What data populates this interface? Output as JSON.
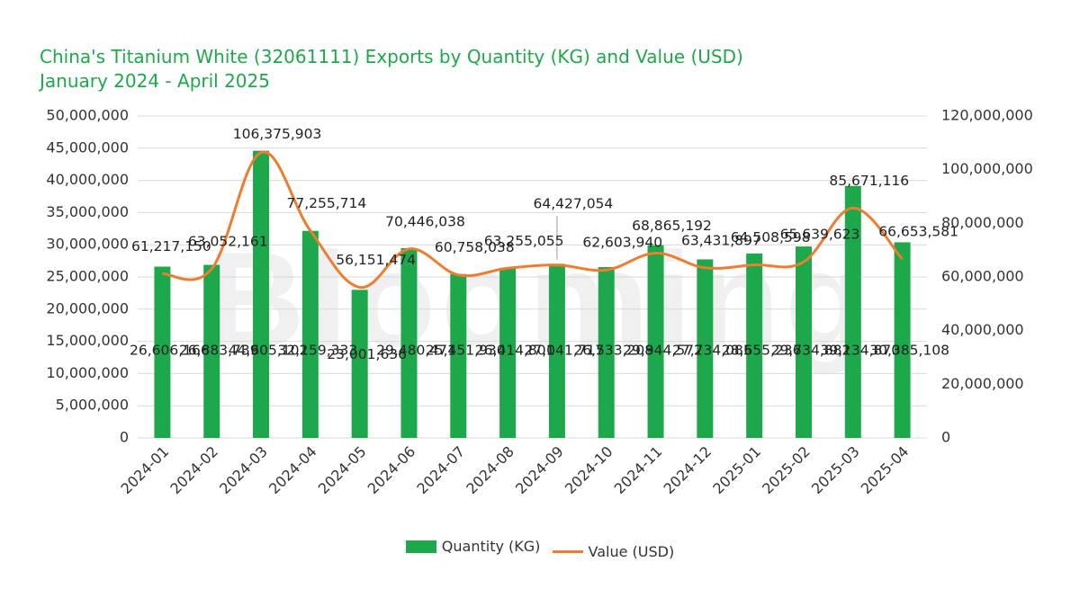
{
  "title": {
    "line1": "China's Titanium White (32061111) Exports by Quantity (KG) and Value (USD)",
    "line2": "January 2024 - April 2025"
  },
  "watermark": "Blooming",
  "colors": {
    "title": "#1fa84a",
    "bar": "#1ca84b",
    "line": "#ed7d31",
    "grid": "#d9d9d9"
  },
  "legend": {
    "quantity": "Quantity (KG)",
    "value": "Value (USD)"
  },
  "chart_data": {
    "type": "bar+line",
    "title": "China's Titanium White (32061111) Exports by Quantity (KG) and Value (USD)",
    "subtitle": "January 2024 - April 2025",
    "categories": [
      "2024-01",
      "2024-02",
      "2024-03",
      "2024-04",
      "2024-05",
      "2024-06",
      "2024-07",
      "2024-08",
      "2024-09",
      "2024-10",
      "2024-11",
      "2024-12",
      "2025-01",
      "2025-02",
      "2025-03",
      "2025-04"
    ],
    "series": [
      {
        "name": "Quantity (KG)",
        "type": "bar",
        "axis": "left",
        "values": [
          26606166,
          26883739,
          44605102,
          32159333,
          23001636,
          29480471,
          25451930,
          26414801,
          27041717,
          26533208,
          29944572,
          27734085,
          28655236,
          29734882,
          39134870,
          30385108
        ],
        "labels": [
          "26,606,166",
          "26,883,739",
          "44,605,102",
          "32,159,333",
          "23,001,636",
          "29,480,471",
          "25,451,930",
          "26,414,801",
          "27,041,717",
          "26,533,208",
          "29,944,572",
          "27,734,085",
          "28,655,236",
          "29,734,882",
          "39,134,870",
          "30,385,108"
        ]
      },
      {
        "name": "Value (USD)",
        "type": "line",
        "axis": "right",
        "values": [
          61217150,
          63052161,
          106375903,
          77255714,
          56151474,
          70446038,
          60758038,
          63255055,
          64427054,
          62603940,
          68865192,
          63431897,
          64508598,
          65639623,
          85671116,
          66653581
        ],
        "labels": [
          "61,217,150",
          "63,052,161",
          "106,375,903",
          "77,255,714",
          "56,151,474",
          "70,446,038",
          "60,758,038",
          "63,255,055",
          "64,427,054",
          "62,603,940",
          "68,865,192",
          "63,431,897",
          "64,508,598",
          "65,639,623",
          "85,671,116",
          "66,653,581"
        ]
      }
    ],
    "y_left": {
      "min": 0,
      "max": 50000000,
      "ticks": [
        0,
        5000000,
        10000000,
        15000000,
        20000000,
        25000000,
        30000000,
        35000000,
        40000000,
        45000000,
        50000000
      ],
      "tick_labels": [
        "0",
        "5,000,000",
        "10,000,000",
        "15,000,000",
        "20,000,000",
        "25,000,000",
        "30,000,000",
        "35,000,000",
        "40,000,000",
        "45,000,000",
        "50,000,000"
      ]
    },
    "y_right": {
      "min": 0,
      "max": 120000000,
      "ticks": [
        0,
        20000000,
        40000000,
        60000000,
        80000000,
        100000000,
        120000000
      ],
      "tick_labels": [
        "0",
        "20,000,000",
        "40,000,000",
        "60,000,000",
        "80,000,000",
        "100,000,000",
        "120,000,000"
      ]
    },
    "grid": true,
    "legend_position": "bottom"
  }
}
